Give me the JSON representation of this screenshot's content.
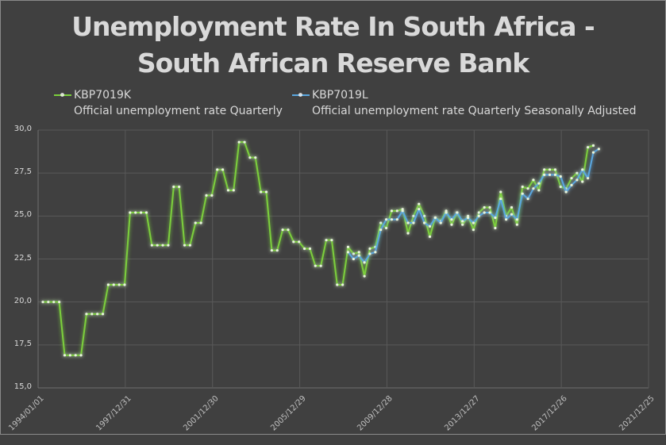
{
  "chart_data": {
    "type": "line",
    "title": "Unemployment Rate In South Africa - South African Reserve Bank",
    "title_lines": [
      "Unemployment Rate In South Africa -",
      "South African Reserve Bank"
    ],
    "xlabel": "",
    "ylabel": "",
    "ylim": [
      15.0,
      30.0
    ],
    "yticks": [
      "15,0",
      "17,5",
      "20,0",
      "22,5",
      "25,0",
      "27,5",
      "30,0"
    ],
    "xticks": [
      "1994/01/01",
      "1997/12/31",
      "2001/12/30",
      "2005/12/29",
      "2009/12/28",
      "2013/12/27",
      "2017/12/26",
      "2021/12/25"
    ],
    "grid": true,
    "legend_position": "top",
    "series": [
      {
        "name": "KBP7019K",
        "description": "Official unemployment rate  Quarterly",
        "color": "#7ccf3c",
        "start_quarter": "1994Q1",
        "values": [
          20.0,
          20.0,
          20.0,
          20.0,
          16.9,
          16.9,
          16.9,
          16.9,
          19.3,
          19.3,
          19.3,
          19.3,
          21.0,
          21.0,
          21.0,
          21.0,
          25.2,
          25.2,
          25.2,
          25.2,
          23.3,
          23.3,
          23.3,
          23.3,
          26.7,
          26.7,
          23.3,
          23.3,
          24.6,
          24.6,
          26.2,
          26.2,
          27.7,
          27.7,
          26.5,
          26.5,
          29.3,
          29.3,
          28.4,
          28.4,
          26.4,
          26.4,
          23.0,
          23.0,
          24.2,
          24.2,
          23.5,
          23.5,
          23.1,
          23.1,
          22.1,
          22.1,
          23.6,
          23.6,
          21.0,
          21.0,
          23.2,
          22.8,
          22.9,
          21.5,
          23.1,
          23.2,
          24.6,
          24.3,
          25.3,
          25.3,
          25.4,
          24.0,
          25.0,
          25.7,
          25.0,
          23.8,
          24.9,
          24.7,
          25.3,
          24.5,
          25.2,
          24.5,
          25.0,
          24.2,
          25.2,
          25.5,
          25.5,
          24.3,
          26.4,
          25.0,
          25.5,
          24.5,
          26.7,
          26.6,
          27.1,
          26.5,
          27.7,
          27.7,
          27.7,
          26.7,
          26.6,
          27.2,
          27.5,
          27.0,
          29.0,
          29.1
        ]
      },
      {
        "name": "KBP7019L",
        "description": "Official unemployment rate Quarterly Seasonally Adjusted",
        "color": "#5aa7e0",
        "start_quarter": "2008Q1",
        "values": [
          22.9,
          22.5,
          22.7,
          22.3,
          22.8,
          22.9,
          24.2,
          24.8,
          24.8,
          24.8,
          25.3,
          24.6,
          24.6,
          25.4,
          24.6,
          24.4,
          24.9,
          24.6,
          25.2,
          24.8,
          25.2,
          24.7,
          24.9,
          24.6,
          25.0,
          25.2,
          25.2,
          24.9,
          26.0,
          24.8,
          25.1,
          24.8,
          26.3,
          26.0,
          26.6,
          26.9,
          27.4,
          27.4,
          27.4,
          27.3,
          26.4,
          26.8,
          27.1,
          27.7,
          27.2,
          28.7,
          28.9
        ]
      }
    ]
  },
  "legend": [
    {
      "code": "KBP7019K",
      "label": "Official unemployment rate  Quarterly",
      "icon": "legend-line-green"
    },
    {
      "code": "KBP7019L",
      "label": "Official unemployment rate Quarterly Seasonally Adjusted",
      "icon": "legend-line-blue"
    }
  ],
  "colors": {
    "background": "#404040",
    "text": "#d9d9d9",
    "grid": "#595959",
    "series1": "#7ccf3c",
    "series2": "#5aa7e0"
  }
}
